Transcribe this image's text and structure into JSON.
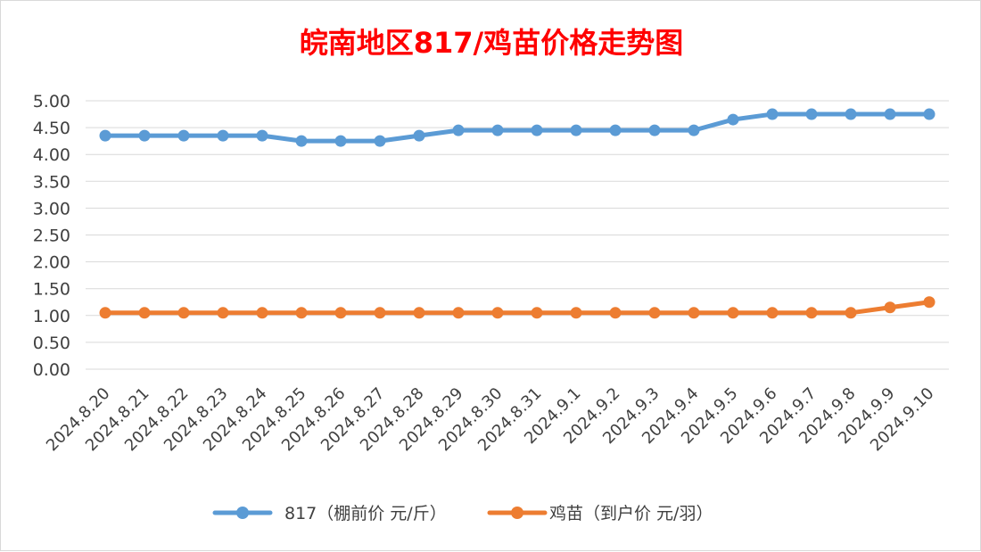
{
  "chart_data": {
    "type": "line",
    "title": "皖南地区817/鸡苗价格走势图",
    "xlabel": "",
    "ylabel": "",
    "categories": [
      "2024.8.20",
      "2024.8.21",
      "2024.8.22",
      "2024.8.23",
      "2024.8.24",
      "2024.8.25",
      "2024.8.26",
      "2024.8.27",
      "2024.8.28",
      "2024.8.29",
      "2024.8.30",
      "2024.8.31",
      "2024.9.1",
      "2024.9.2",
      "2024.9.3",
      "2024.9.4",
      "2024.9.5",
      "2024.9.6",
      "2024.9.7",
      "2024.9.8",
      "2024.9.9",
      "2024.9.10"
    ],
    "ylim": [
      0,
      5
    ],
    "yticks": [
      "0.00",
      "0.50",
      "1.00",
      "1.50",
      "2.00",
      "2.50",
      "3.00",
      "3.50",
      "4.00",
      "4.50",
      "5.00"
    ],
    "grid": true,
    "legend_position": "bottom",
    "series": [
      {
        "name": "817（棚前价 元/斤）",
        "color": "#5b9bd5",
        "values": [
          4.35,
          4.35,
          4.35,
          4.35,
          4.35,
          4.25,
          4.25,
          4.25,
          4.35,
          4.45,
          4.45,
          4.45,
          4.45,
          4.45,
          4.45,
          4.45,
          4.65,
          4.75,
          4.75,
          4.75,
          4.75,
          4.75
        ]
      },
      {
        "name": "鸡苗（到户价 元/羽）",
        "color": "#ed7d31",
        "values": [
          1.05,
          1.05,
          1.05,
          1.05,
          1.05,
          1.05,
          1.05,
          1.05,
          1.05,
          1.05,
          1.05,
          1.05,
          1.05,
          1.05,
          1.05,
          1.05,
          1.05,
          1.05,
          1.05,
          1.05,
          1.15,
          1.25
        ]
      }
    ],
    "title_color": "#ff0000",
    "grid_color": "#d9d9d9",
    "text_color": "#404040"
  }
}
